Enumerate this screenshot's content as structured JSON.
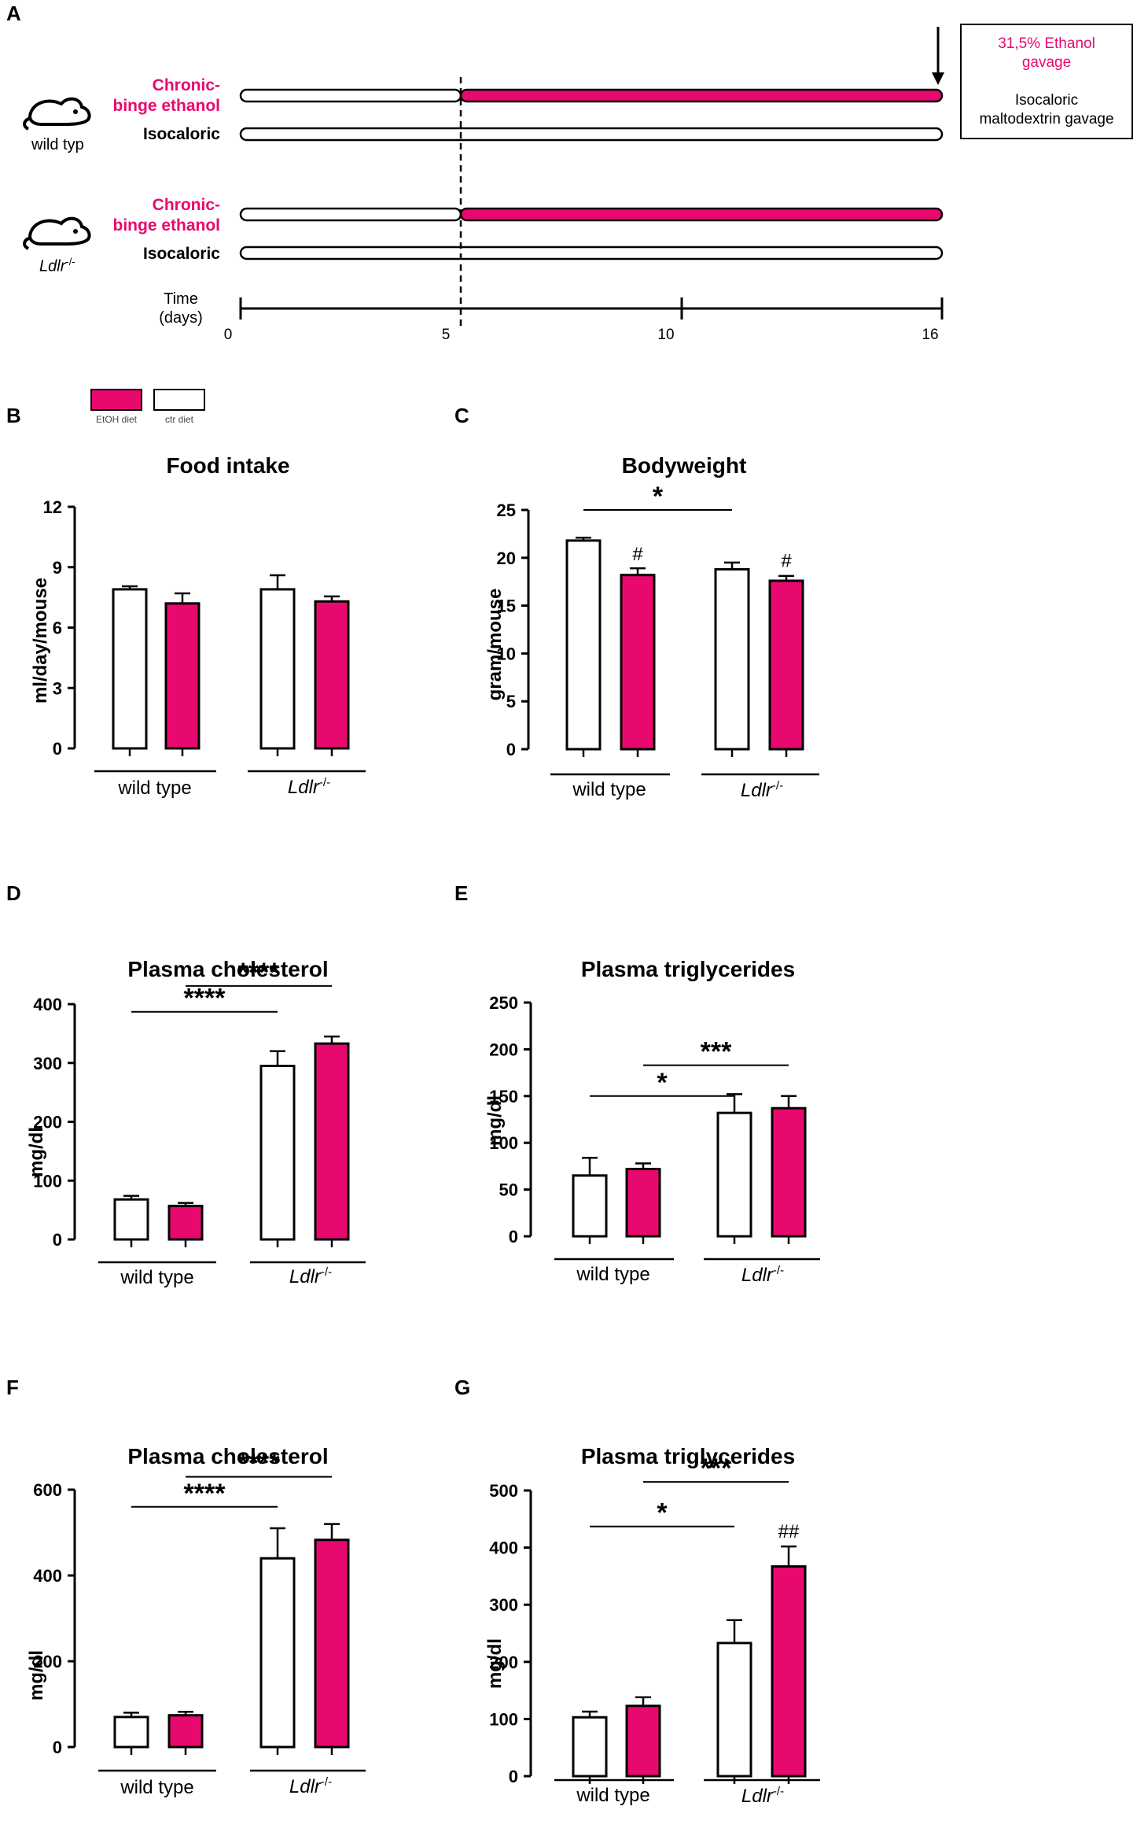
{
  "colors": {
    "ethanol": "#E8096E",
    "outline": "#000000",
    "background": "#ffffff"
  },
  "panelA": {
    "label": "A",
    "groups": [
      {
        "name": "wild typ",
        "italic": false,
        "rows": [
          {
            "label": "Chronic-\nbinge ethanol",
            "pink": true
          },
          {
            "label": "Isocaloric",
            "pink": false
          }
        ]
      },
      {
        "name": "Ldlr",
        "sup": "-/-",
        "italic": true,
        "rows": [
          {
            "label": "Chronic-\nbinge ethanol",
            "pink": true
          },
          {
            "label": "Isocaloric",
            "pink": false
          }
        ]
      }
    ],
    "legend": {
      "ethanol": "31,5% Ethanol\ngavage",
      "control": "Isocaloric\nmaltodextrin gavage"
    },
    "time_label": "Time\n(days)",
    "ticks": [
      "0",
      "5",
      "10",
      "16"
    ]
  },
  "legend": {
    "etoh": "EtOH diet",
    "ctr": "ctr diet"
  },
  "group_labels": {
    "wt": "wild type",
    "ldlr": "Ldlr",
    "ldlr_sup": "-/-"
  },
  "chart_data": [
    {
      "panel": "B",
      "type": "bar",
      "title": "Food intake",
      "ylabel": "ml/day/mouse",
      "ylim": [
        0,
        12
      ],
      "yticks": [
        0,
        3,
        6,
        9,
        12
      ],
      "categories": [
        "wild type",
        "Ldlr -/-"
      ],
      "series": [
        {
          "name": "ctr diet",
          "values": [
            7.9,
            7.9
          ],
          "errors": [
            0.15,
            0.7
          ]
        },
        {
          "name": "EtOH diet",
          "values": [
            7.2,
            7.3
          ],
          "errors": [
            0.5,
            0.25
          ]
        }
      ],
      "annotations": []
    },
    {
      "panel": "C",
      "type": "bar",
      "title": "Bodyweight",
      "ylabel": "gram/mouse",
      "ylim": [
        0,
        25
      ],
      "yticks": [
        0,
        5,
        10,
        15,
        20,
        25
      ],
      "categories": [
        "wild type",
        "Ldlr -/-"
      ],
      "series": [
        {
          "name": "ctr diet",
          "values": [
            21.8,
            18.8
          ],
          "errors": [
            0.3,
            0.7
          ]
        },
        {
          "name": "EtOH diet",
          "values": [
            18.2,
            17.6
          ],
          "errors": [
            0.7,
            0.5
          ]
        }
      ],
      "annotations": [
        {
          "text": "*",
          "from": "wt-ctr",
          "to": "ldlr-ctr",
          "level": 25
        },
        {
          "text": "#",
          "bar": "wt-etoh",
          "level": 19.4
        },
        {
          "text": "#",
          "bar": "ldlr-etoh",
          "level": 18.7
        }
      ]
    },
    {
      "panel": "D",
      "type": "bar",
      "title": "Plasma cholesterol",
      "ylabel": "mg/dl",
      "ylim": [
        0,
        400
      ],
      "yticks": [
        0,
        100,
        200,
        300,
        400
      ],
      "categories": [
        "wild type",
        "Ldlr -/-"
      ],
      "series": [
        {
          "name": "ctr diet",
          "values": [
            68,
            295
          ],
          "errors": [
            6,
            25
          ]
        },
        {
          "name": "EtOH diet",
          "values": [
            57,
            333
          ],
          "errors": [
            5,
            12
          ]
        }
      ],
      "annotations": [
        {
          "text": "****",
          "from": "wt-ctr",
          "to": "ldlr-ctr",
          "level": 387
        },
        {
          "text": "****",
          "from": "wt-etoh",
          "to": "ldlr-etoh",
          "level": 431
        }
      ]
    },
    {
      "panel": "E",
      "type": "bar",
      "title": "Plasma triglycerides",
      "ylabel": "mg/dl",
      "ylim": [
        0,
        250
      ],
      "yticks": [
        0,
        50,
        100,
        150,
        200,
        250
      ],
      "categories": [
        "wild type",
        "Ldlr -/-"
      ],
      "series": [
        {
          "name": "ctr diet",
          "values": [
            65,
            132
          ],
          "errors": [
            19,
            20
          ]
        },
        {
          "name": "EtOH diet",
          "values": [
            72,
            137
          ],
          "errors": [
            6,
            13
          ]
        }
      ],
      "annotations": [
        {
          "text": "*",
          "from": "wt-ctr",
          "to": "ldlr-ctr",
          "level": 150
        },
        {
          "text": "***",
          "from": "wt-etoh",
          "to": "ldlr-etoh",
          "level": 183
        }
      ]
    },
    {
      "panel": "F",
      "type": "bar",
      "title": "Plasma cholesterol",
      "ylabel": "mg/dl",
      "ylim": [
        0,
        600
      ],
      "yticks": [
        0,
        200,
        400,
        600
      ],
      "categories": [
        "wild type",
        "Ldlr -/-"
      ],
      "series": [
        {
          "name": "ctr diet",
          "values": [
            70,
            440
          ],
          "errors": [
            10,
            70
          ]
        },
        {
          "name": "EtOH diet",
          "values": [
            74,
            483
          ],
          "errors": [
            8,
            37
          ]
        }
      ],
      "annotations": [
        {
          "text": "****",
          "from": "wt-ctr",
          "to": "ldlr-ctr",
          "level": 560
        },
        {
          "text": "****",
          "from": "wt-etoh",
          "to": "ldlr-etoh",
          "level": 630
        }
      ]
    },
    {
      "panel": "G",
      "type": "bar",
      "title": "Plasma triglycerides",
      "ylabel": "mg/dl",
      "ylim": [
        0,
        500
      ],
      "yticks": [
        0,
        100,
        200,
        300,
        400,
        500
      ],
      "categories": [
        "wild type",
        "Ldlr -/-"
      ],
      "series": [
        {
          "name": "ctr diet",
          "values": [
            103,
            233
          ],
          "errors": [
            10,
            40
          ]
        },
        {
          "name": "EtOH diet",
          "values": [
            123,
            367
          ],
          "errors": [
            15,
            35
          ]
        }
      ],
      "annotations": [
        {
          "text": "*",
          "from": "wt-ctr",
          "to": "ldlr-ctr",
          "level": 437
        },
        {
          "text": "***",
          "from": "wt-etoh",
          "to": "ldlr-etoh",
          "level": 515
        },
        {
          "text": "##",
          "bar": "ldlr-etoh",
          "level": 412
        }
      ]
    }
  ]
}
